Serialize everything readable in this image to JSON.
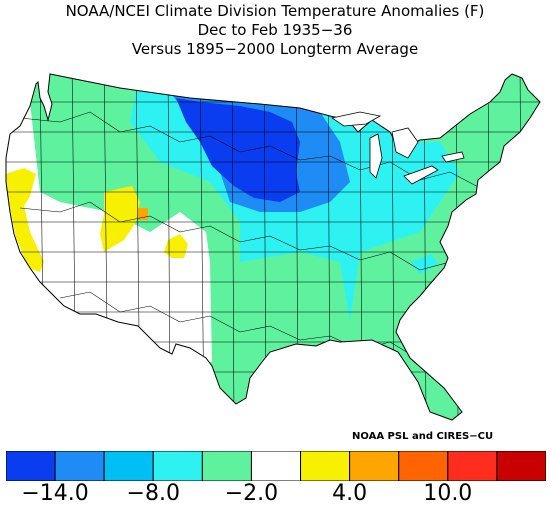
{
  "title": {
    "line1": "NOAA/NCEI Climate Division Temperature Anomalies (F)",
    "line2": "Dec to Feb 1935−36",
    "line3": "Versus 1895−2000 Longterm Average"
  },
  "credit": "NOAA PSL and CIRES−CU",
  "legend": {
    "colors": [
      "#0a3cf0",
      "#1f8cf5",
      "#00bff5",
      "#2ef2f2",
      "#5ef29e",
      "#ffffff",
      "#f7f000",
      "#ffa500",
      "#ff6400",
      "#ff2d1e",
      "#c80000"
    ],
    "ticks": [
      "−14.0",
      "−8.0",
      "−2.0",
      "4.0",
      "10.0"
    ],
    "tick_values": [
      -14.0,
      -8.0,
      -2.0,
      4.0,
      10.0
    ]
  },
  "map": {
    "region": "Contiguous United States",
    "regions": [
      {
        "area": "northern-plains",
        "category": "≤ −14.0",
        "color": "#0a3cf0"
      },
      {
        "area": "north-central",
        "category": "−14.0 to −11.0",
        "color": "#1f8cf5"
      },
      {
        "area": "midwest",
        "category": "−8.0 to −5.0",
        "color": "#2ef2f2"
      },
      {
        "area": "south-and-east",
        "category": "−5.0 to −2.0",
        "color": "#5ef29e"
      },
      {
        "area": "west",
        "category": "−2.0 to 1.0",
        "color": "#ffffff"
      },
      {
        "area": "california-utah",
        "category": "1.0 to 4.0",
        "color": "#f7f000"
      },
      {
        "area": "colorado-spot",
        "category": "4.0 to 7.0",
        "color": "#ffa500"
      }
    ]
  }
}
